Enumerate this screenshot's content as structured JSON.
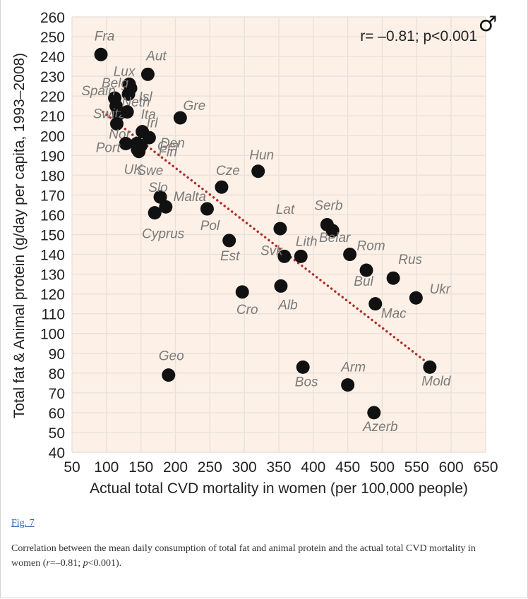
{
  "chart_data": {
    "type": "scatter",
    "title": "",
    "xlabel": "Actual total CVD  mortality in women (per 100,000 people)",
    "ylabel": "Total fat & Animal protein (g/day per capita, 1993–2008)",
    "xlim": [
      50,
      650
    ],
    "ylim": [
      40,
      260
    ],
    "xticks": [
      50,
      100,
      150,
      200,
      250,
      300,
      350,
      400,
      450,
      500,
      550,
      600,
      650
    ],
    "yticks": [
      40,
      50,
      60,
      70,
      80,
      90,
      100,
      110,
      120,
      130,
      140,
      150,
      160,
      170,
      180,
      190,
      200,
      210,
      220,
      230,
      240,
      250,
      260
    ],
    "grid": true,
    "annotation": "r= –0.81; p<0.001",
    "symbol": "♂",
    "colors": {
      "background": "#fdf0e6",
      "grid": "#e8e2dc",
      "point": "#111111",
      "trendline": "#b03030",
      "label": "#7a7a7a",
      "axis_text": "#222222"
    },
    "trendline": {
      "x": [
        95,
        570
      ],
      "y": [
        212,
        84
      ],
      "style": "dotted"
    },
    "points": [
      {
        "label": "Fra",
        "x": 92,
        "y": 241
      },
      {
        "label": "Aut",
        "x": 160,
        "y": 231
      },
      {
        "label": "Lux",
        "x": 133,
        "y": 226
      },
      {
        "label": "Belg",
        "x": 135,
        "y": 224
      },
      {
        "label": "Isl",
        "x": 132,
        "y": 221
      },
      {
        "label": "Spain",
        "x": 112,
        "y": 219
      },
      {
        "label": "Neth",
        "x": 114,
        "y": 215
      },
      {
        "label": "Switz",
        "x": 118,
        "y": 211
      },
      {
        "label": "Ita",
        "x": 130,
        "y": 212
      },
      {
        "label": "Gre",
        "x": 207,
        "y": 209
      },
      {
        "label": "Irl",
        "x": 115,
        "y": 206
      },
      {
        "label": "Nor",
        "x": 152,
        "y": 202
      },
      {
        "label": "Den",
        "x": 162,
        "y": 199
      },
      {
        "label": "Port",
        "x": 128,
        "y": 196
      },
      {
        "label": "Fin",
        "x": 150,
        "y": 195
      },
      {
        "label": "UK",
        "x": 147,
        "y": 192
      },
      {
        "label": "Ger",
        "x": 144,
        "y": 196
      },
      {
        "label": "Swe",
        "x": 145,
        "y": 193
      },
      {
        "label": "Hun",
        "x": 320,
        "y": 182
      },
      {
        "label": "Cze",
        "x": 267,
        "y": 174
      },
      {
        "label": "Slo",
        "x": 178,
        "y": 169
      },
      {
        "label": "Malta",
        "x": 186,
        "y": 164
      },
      {
        "label": "Cyprus",
        "x": 170,
        "y": 161
      },
      {
        "label": "Pol",
        "x": 246,
        "y": 163
      },
      {
        "label": "Serb",
        "x": 420,
        "y": 155
      },
      {
        "label": "Belar",
        "x": 428,
        "y": 152
      },
      {
        "label": "Lat",
        "x": 352,
        "y": 153
      },
      {
        "label": "Est",
        "x": 278,
        "y": 147
      },
      {
        "label": "Rom",
        "x": 453,
        "y": 140
      },
      {
        "label": "Svk",
        "x": 358,
        "y": 139
      },
      {
        "label": "Lith",
        "x": 382,
        "y": 139
      },
      {
        "label": "Rus",
        "x": 516,
        "y": 128
      },
      {
        "label": "Bul",
        "x": 477,
        "y": 132
      },
      {
        "label": "Ukr",
        "x": 549,
        "y": 118
      },
      {
        "label": "Alb",
        "x": 353,
        "y": 124
      },
      {
        "label": "Cro",
        "x": 297,
        "y": 121
      },
      {
        "label": "Mac",
        "x": 490,
        "y": 115
      },
      {
        "label": "Geo",
        "x": 190,
        "y": 79
      },
      {
        "label": "Bos",
        "x": 385,
        "y": 83
      },
      {
        "label": "Mold",
        "x": 569,
        "y": 83
      },
      {
        "label": "Arm",
        "x": 450,
        "y": 74
      },
      {
        "label": "Azerb",
        "x": 488,
        "y": 60
      }
    ]
  },
  "figure": {
    "link_label": "Fig. 7",
    "caption_before": "Correlation between the mean daily consumption of total fat and animal protein and the actual total CVD mortality in women (",
    "caption_r": "r",
    "caption_mid": "=–0.81; ",
    "caption_p": "p",
    "caption_after": "<0.001)."
  }
}
